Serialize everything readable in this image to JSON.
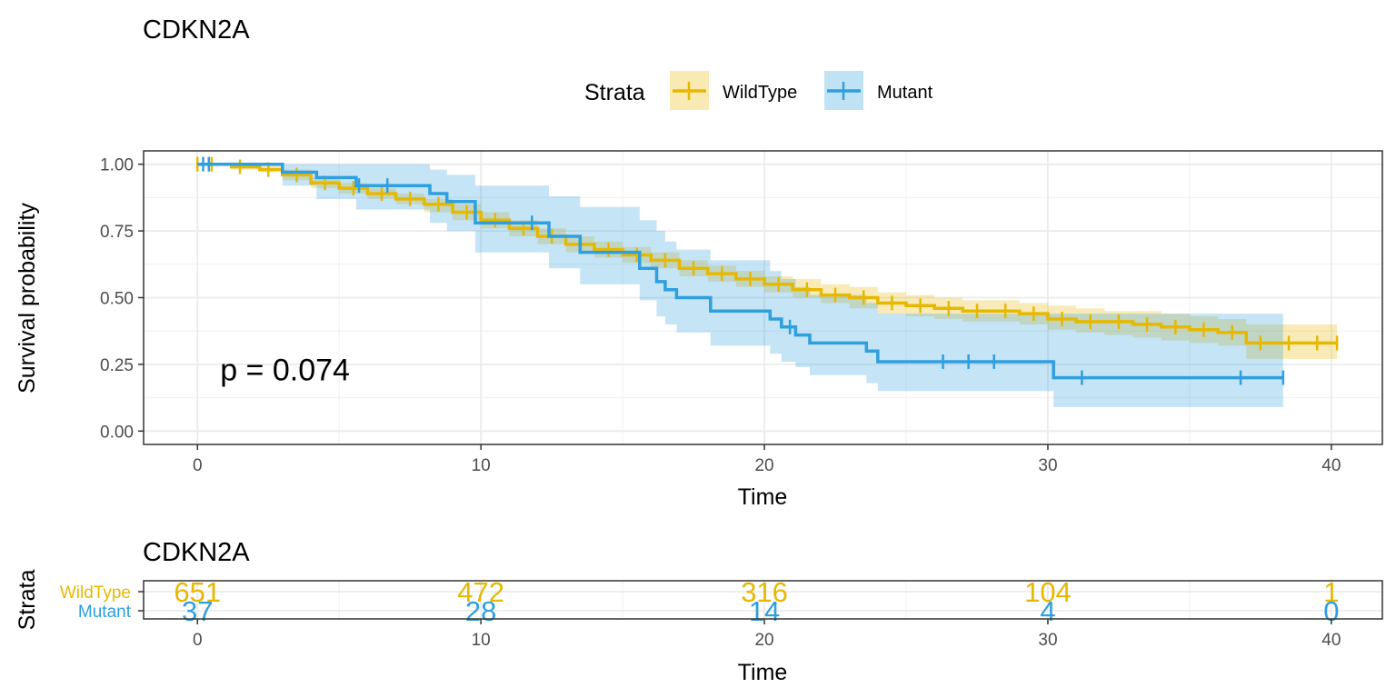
{
  "chart_data": [
    {
      "type": "line",
      "step": "post",
      "title": "CDKN2A",
      "xlabel": "Time",
      "ylabel": "Survival probability",
      "xlim": [
        -1.9,
        41.8
      ],
      "ylim": [
        -0.05,
        1.05
      ],
      "x_ticks": [
        0,
        10,
        20,
        30,
        40
      ],
      "x_tick_labels": [
        "0",
        "10",
        "20",
        "30",
        "40"
      ],
      "y_ticks": [
        0,
        0.25,
        0.5,
        0.75,
        1
      ],
      "y_tick_labels": [
        "0.00",
        "0.25",
        "0.50",
        "0.75",
        "1.00"
      ],
      "grid": true,
      "legend": {
        "title": "Strata",
        "position": "top",
        "entries": [
          "WildType",
          "Mutant"
        ]
      },
      "annotation": "p = 0.074",
      "annotation_pos": {
        "x": 0.8,
        "y": 0.19
      },
      "series": [
        {
          "name": "WildType",
          "color": "#E7B800",
          "x": [
            0,
            1.2,
            2.2,
            3.0,
            4.0,
            5.0,
            6.0,
            7.0,
            8.0,
            9.0,
            10.0,
            11.0,
            12.0,
            13.0,
            14.0,
            15.0,
            16.0,
            17.0,
            18.0,
            19.0,
            20.0,
            21.0,
            22.0,
            23.0,
            24.0,
            25.0,
            26.0,
            27.0,
            28.0,
            29.0,
            30.0,
            31.0,
            32.0,
            33.0,
            34.0,
            35.0,
            36.0,
            37.0,
            38.0,
            39.0,
            40.2
          ],
          "y": [
            1.0,
            0.99,
            0.98,
            0.96,
            0.93,
            0.91,
            0.89,
            0.87,
            0.85,
            0.82,
            0.79,
            0.76,
            0.73,
            0.7,
            0.68,
            0.66,
            0.64,
            0.61,
            0.59,
            0.57,
            0.55,
            0.53,
            0.51,
            0.5,
            0.48,
            0.47,
            0.46,
            0.45,
            0.45,
            0.44,
            0.42,
            0.41,
            0.41,
            0.4,
            0.39,
            0.38,
            0.37,
            0.33,
            0.33,
            0.33,
            0.33
          ],
          "upper": [
            1.0,
            1.0,
            1.0,
            0.98,
            0.95,
            0.93,
            0.91,
            0.89,
            0.87,
            0.85,
            0.82,
            0.79,
            0.76,
            0.73,
            0.71,
            0.69,
            0.67,
            0.64,
            0.62,
            0.6,
            0.58,
            0.57,
            0.55,
            0.54,
            0.52,
            0.51,
            0.5,
            0.49,
            0.49,
            0.48,
            0.47,
            0.46,
            0.45,
            0.45,
            0.44,
            0.43,
            0.42,
            0.4,
            0.4,
            0.4,
            0.4
          ],
          "lower": [
            1.0,
            0.98,
            0.97,
            0.94,
            0.91,
            0.89,
            0.87,
            0.85,
            0.82,
            0.79,
            0.76,
            0.73,
            0.7,
            0.67,
            0.65,
            0.63,
            0.61,
            0.58,
            0.56,
            0.54,
            0.52,
            0.5,
            0.48,
            0.46,
            0.44,
            0.43,
            0.42,
            0.41,
            0.41,
            0.4,
            0.38,
            0.37,
            0.36,
            0.35,
            0.34,
            0.33,
            0.32,
            0.27,
            0.27,
            0.27,
            0.27
          ],
          "censor_x": [
            0,
            0.5,
            1.5,
            2.5,
            3.5,
            4.5,
            5.5,
            6.5,
            7.5,
            8.5,
            9.5,
            10.5,
            11.5,
            12.5,
            13.5,
            14.5,
            15.5,
            16.5,
            17.5,
            18.5,
            19.5,
            20.5,
            21.5,
            22.5,
            23.5,
            24.5,
            25.5,
            26.5,
            27.5,
            28.5,
            29.5,
            30.5,
            31.5,
            32.5,
            33.5,
            34.5,
            35.5,
            36.5,
            37.5,
            38.5,
            39.5,
            40.2
          ]
        },
        {
          "name": "Mutant",
          "color": "#2E9FDF",
          "x": [
            0,
            2.2,
            3.0,
            4.2,
            5.6,
            8.2,
            8.8,
            9.8,
            12.1,
            12.4,
            13.5,
            15.6,
            16.2,
            16.5,
            16.9,
            18.1,
            20.2,
            20.6,
            21.1,
            21.6,
            23.6,
            24.0,
            30.2,
            38.3
          ],
          "y": [
            1.0,
            1.0,
            0.97,
            0.95,
            0.92,
            0.89,
            0.86,
            0.78,
            0.78,
            0.73,
            0.67,
            0.61,
            0.56,
            0.53,
            0.5,
            0.45,
            0.42,
            0.39,
            0.36,
            0.33,
            0.3,
            0.26,
            0.2,
            0.2
          ],
          "upper": [
            1.0,
            1.0,
            1.0,
            1.0,
            1.0,
            0.98,
            0.96,
            0.92,
            0.92,
            0.88,
            0.84,
            0.79,
            0.75,
            0.71,
            0.68,
            0.64,
            0.6,
            0.57,
            0.54,
            0.51,
            0.48,
            0.44,
            0.44,
            0.44
          ],
          "lower": [
            1.0,
            1.0,
            0.92,
            0.87,
            0.83,
            0.78,
            0.75,
            0.67,
            0.67,
            0.61,
            0.55,
            0.49,
            0.43,
            0.4,
            0.37,
            0.32,
            0.29,
            0.26,
            0.24,
            0.21,
            0.18,
            0.15,
            0.09,
            0.09
          ],
          "censor_x": [
            0.2,
            0.4,
            5.7,
            6.7,
            11.8,
            20.9,
            26.3,
            27.2,
            28.1,
            31.2,
            36.8,
            38.3
          ]
        }
      ]
    },
    {
      "type": "table",
      "title": "CDKN2A",
      "xlabel": "Time",
      "ylabel": "Strata",
      "x_ticks": [
        0,
        10,
        20,
        30,
        40
      ],
      "x_tick_labels": [
        "0",
        "10",
        "20",
        "30",
        "40"
      ],
      "rows": [
        {
          "name": "WildType",
          "color": "#E7B800",
          "values": [
            651,
            472,
            316,
            104,
            1
          ]
        },
        {
          "name": "Mutant",
          "color": "#2E9FDF",
          "values": [
            37,
            28,
            14,
            4,
            0
          ]
        }
      ]
    }
  ]
}
